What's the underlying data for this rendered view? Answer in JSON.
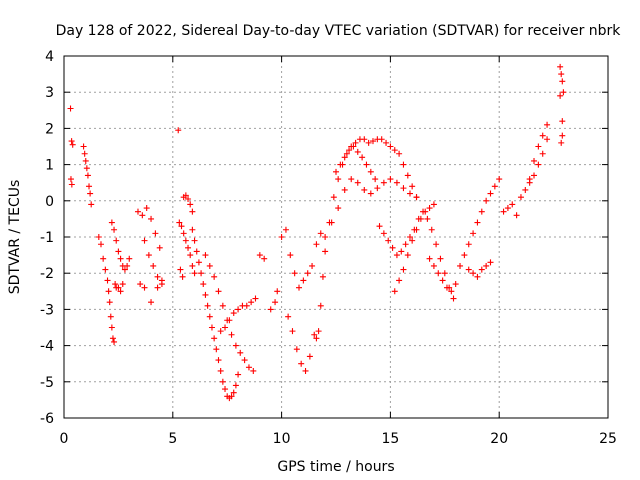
{
  "chart_data": {
    "type": "scatter",
    "title": "Day 128 of 2022, Sidereal Day-to-day VTEC variation (SDTVAR) for receiver nbrk",
    "xlabel": "GPS time / hours",
    "ylabel": "SDTVAR / TECUs",
    "xlim": [
      0,
      25
    ],
    "ylim": [
      -6,
      4
    ],
    "xticks": [
      0,
      5,
      10,
      15,
      20,
      25
    ],
    "yticks": [
      -6,
      -5,
      -4,
      -3,
      -2,
      -1,
      0,
      1,
      2,
      3,
      4
    ],
    "grid": true,
    "marker": "plus",
    "color": "#ff0000",
    "series": [
      {
        "name": "SDTVAR",
        "x": [
          0.3,
          0.35,
          0.4,
          0.32,
          0.36,
          0.9,
          0.95,
          1.0,
          1.05,
          1.1,
          1.15,
          1.2,
          1.25,
          1.6,
          1.7,
          1.8,
          1.9,
          2.0,
          2.05,
          2.1,
          2.15,
          2.2,
          2.25,
          2.3,
          2.35,
          2.4,
          2.5,
          2.6,
          2.7,
          2.2,
          2.3,
          2.4,
          2.5,
          2.6,
          2.7,
          2.8,
          2.9,
          3.0,
          3.4,
          3.6,
          3.8,
          4.0,
          4.2,
          4.4,
          3.7,
          3.9,
          4.1,
          4.3,
          4.5,
          3.5,
          3.7,
          4.0,
          4.3,
          4.5,
          5.25,
          5.35,
          5.45,
          5.5,
          5.6,
          5.7,
          5.8,
          5.9,
          5.3,
          5.4,
          5.5,
          5.6,
          5.7,
          5.8,
          5.9,
          6.0,
          5.9,
          6.0,
          6.1,
          6.2,
          6.3,
          6.4,
          6.5,
          6.6,
          6.7,
          6.8,
          6.9,
          7.0,
          7.1,
          7.2,
          7.3,
          7.4,
          7.5,
          7.6,
          7.7,
          7.8,
          7.9,
          8.0,
          6.5,
          6.7,
          6.9,
          7.1,
          7.3,
          7.5,
          7.7,
          7.9,
          8.1,
          8.3,
          8.5,
          8.7,
          7.2,
          7.4,
          7.6,
          7.8,
          8.0,
          8.2,
          8.4,
          8.6,
          8.8,
          9.0,
          9.2,
          9.5,
          9.7,
          9.8,
          10.0,
          10.2,
          10.4,
          10.6,
          10.8,
          11.0,
          11.2,
          11.4,
          11.6,
          11.8,
          10.3,
          10.5,
          10.7,
          10.9,
          11.1,
          11.3,
          11.5,
          11.6,
          11.7,
          11.8,
          11.9,
          12.0,
          12.2,
          12.4,
          12.6,
          12.8,
          13.0,
          13.2,
          13.4,
          13.6,
          13.8,
          14.0,
          14.2,
          14.4,
          14.6,
          14.8,
          15.0,
          15.2,
          15.4,
          15.6,
          15.8,
          16.0,
          16.2,
          12.0,
          12.3,
          12.6,
          12.9,
          13.2,
          13.5,
          13.8,
          14.1,
          14.4,
          14.7,
          15.0,
          15.3,
          15.6,
          15.9,
          16.2,
          12.5,
          12.7,
          12.9,
          13.1,
          13.3,
          13.5,
          13.7,
          13.9,
          14.1,
          14.3,
          14.5,
          14.7,
          14.9,
          15.1,
          15.3,
          15.5,
          15.7,
          15.9,
          16.1,
          16.3,
          16.5,
          16.7,
          16.9,
          17.1,
          17.3,
          17.5,
          17.7,
          17.9,
          15.2,
          15.4,
          15.6,
          15.8,
          16.0,
          16.2,
          16.4,
          16.6,
          16.8,
          17.0,
          16.8,
          17.0,
          17.2,
          17.4,
          17.6,
          17.8,
          18.0,
          18.2,
          18.4,
          18.6,
          18.8,
          19.0,
          19.2,
          19.4,
          19.6,
          19.8,
          20.0,
          18.6,
          18.8,
          19.0,
          19.2,
          19.4,
          19.6,
          20.2,
          20.4,
          20.6,
          20.8,
          21.0,
          21.2,
          21.4,
          21.6,
          21.8,
          22.0,
          22.2,
          21.4,
          21.6,
          21.8,
          22.0,
          22.2,
          22.8,
          22.85,
          22.9,
          22.95,
          22.8,
          22.9,
          22.85,
          22.9
        ],
        "y": [
          2.55,
          1.65,
          1.55,
          0.6,
          0.45,
          1.5,
          1.3,
          1.1,
          0.9,
          0.7,
          0.4,
          0.2,
          -0.1,
          -1.0,
          -1.2,
          -1.6,
          -1.9,
          -2.2,
          -2.5,
          -2.8,
          -3.2,
          -3.5,
          -3.8,
          -3.9,
          -2.3,
          -2.4,
          -2.4,
          -2.5,
          -2.3,
          -0.6,
          -0.8,
          -1.1,
          -1.4,
          -1.6,
          -1.8,
          -1.9,
          -1.8,
          -1.6,
          -0.3,
          -0.4,
          -0.2,
          -0.5,
          -0.9,
          -1.3,
          -1.1,
          -1.5,
          -1.8,
          -2.1,
          -2.3,
          -2.3,
          -2.4,
          -2.8,
          -2.4,
          -2.2,
          1.95,
          -1.9,
          -2.1,
          0.1,
          0.15,
          0.05,
          -0.1,
          -0.3,
          -0.6,
          -0.7,
          -0.9,
          -1.1,
          -1.3,
          -1.5,
          -1.8,
          -2.0,
          -0.8,
          -1.1,
          -1.4,
          -1.7,
          -2.0,
          -2.3,
          -2.6,
          -2.9,
          -3.2,
          -3.5,
          -3.8,
          -4.1,
          -4.4,
          -4.7,
          -5.0,
          -5.2,
          -5.4,
          -5.45,
          -5.4,
          -5.3,
          -5.1,
          -4.8,
          -1.5,
          -1.8,
          -2.1,
          -2.5,
          -2.9,
          -3.3,
          -3.7,
          -4.0,
          -4.2,
          -4.4,
          -4.6,
          -4.7,
          -3.6,
          -3.5,
          -3.3,
          -3.1,
          -3.0,
          -2.9,
          -2.9,
          -2.8,
          -2.7,
          -1.5,
          -1.6,
          -3.0,
          -2.8,
          -2.5,
          -1.0,
          -0.8,
          -1.5,
          -2.0,
          -2.4,
          -2.2,
          -2.0,
          -1.8,
          -1.2,
          -0.9,
          -3.2,
          -3.6,
          -4.1,
          -4.5,
          -4.7,
          -4.3,
          -3.7,
          -3.8,
          -3.6,
          -2.9,
          -2.1,
          -1.4,
          -0.6,
          0.1,
          0.6,
          1.0,
          1.3,
          1.5,
          1.6,
          1.7,
          1.7,
          1.6,
          1.65,
          1.7,
          1.7,
          1.6,
          1.5,
          1.4,
          1.3,
          1.0,
          0.7,
          0.4,
          0.1,
          -1.0,
          -0.6,
          -0.2,
          0.3,
          0.6,
          0.5,
          0.3,
          0.2,
          0.35,
          0.5,
          0.6,
          0.5,
          0.35,
          0.2,
          0.1,
          0.8,
          1.0,
          1.2,
          1.4,
          1.5,
          1.35,
          1.2,
          1.0,
          0.8,
          0.6,
          -0.7,
          -0.9,
          -1.1,
          -1.3,
          -1.5,
          -1.4,
          -1.2,
          -1.0,
          -0.8,
          -0.5,
          -0.3,
          -0.5,
          -0.8,
          -1.2,
          -1.6,
          -2.0,
          -2.4,
          -2.7,
          -2.5,
          -2.2,
          -1.9,
          -1.5,
          -1.1,
          -0.8,
          -0.5,
          -0.3,
          -0.2,
          -0.1,
          -1.6,
          -1.8,
          -2.0,
          -2.2,
          -2.4,
          -2.5,
          -2.3,
          -1.8,
          -1.5,
          -1.2,
          -0.9,
          -0.6,
          -0.3,
          0.0,
          0.2,
          0.4,
          0.6,
          -1.9,
          -2.0,
          -2.1,
          -1.9,
          -1.8,
          -1.7,
          -0.3,
          -0.2,
          -0.1,
          -0.4,
          0.1,
          0.3,
          0.5,
          0.7,
          1.0,
          1.3,
          1.7,
          0.6,
          1.1,
          1.5,
          1.8,
          2.1,
          3.7,
          3.5,
          3.3,
          3.0,
          2.9,
          1.8,
          1.6,
          2.2
        ]
      }
    ]
  }
}
